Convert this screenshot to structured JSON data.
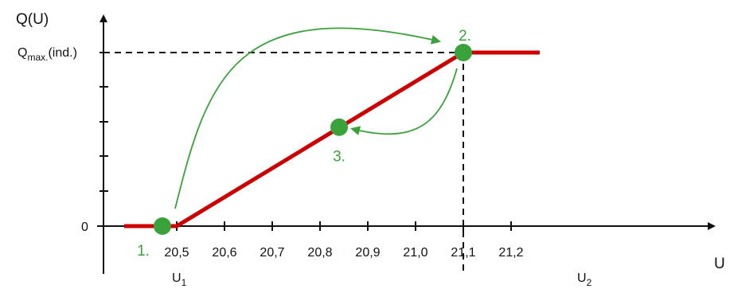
{
  "colors": {
    "curve": "#cc0000",
    "points": "#3aa23a",
    "axes": "#111111"
  },
  "chart_data": {
    "type": "line",
    "title": "",
    "ylabel": "Q(U)",
    "xlabel": "U",
    "x_ticks": [
      "20,5",
      "20,6",
      "20,7",
      "20,8",
      "20,9",
      "21,0",
      "21,1",
      "21,2"
    ],
    "y_tick_labels": {
      "zero": "0",
      "qmax_main": "Q",
      "qmax_sub": "max.",
      "qmax_tail": "(ind.)"
    },
    "u1_label": {
      "main": "U",
      "sub": "1"
    },
    "u2_label": {
      "main": "U",
      "sub": "2"
    },
    "xlim": [
      20.39,
      21.35
    ],
    "ylim": [
      0,
      1
    ],
    "series": [
      {
        "values": [
          {
            "x": 20.39,
            "y": 0
          },
          {
            "x": 20.5,
            "y": 0
          },
          {
            "x": 21.1,
            "y": 1
          },
          {
            "x": 21.26,
            "y": 1
          }
        ]
      }
    ],
    "points": [
      {
        "label": "1.",
        "x": 20.47,
        "y": 0
      },
      {
        "label": "2.",
        "x": 21.1,
        "y": 1
      },
      {
        "label": "3.",
        "x": 20.84,
        "y": 0.57
      }
    ]
  }
}
